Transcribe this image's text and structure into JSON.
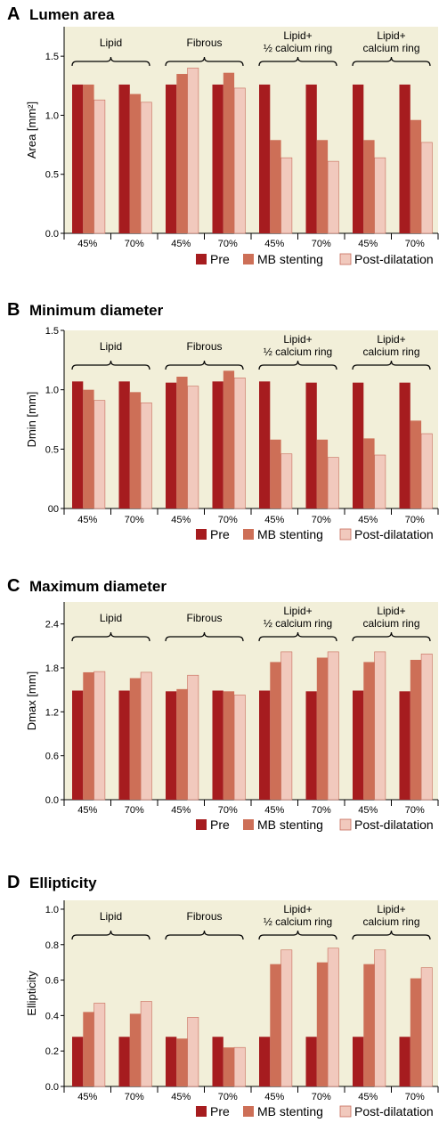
{
  "colors": {
    "pre": "#a61c1f",
    "mb": "#cd6f57",
    "post": "#f1c9bd",
    "post_stroke": "#c76b5a",
    "plot_bg": "#f2efd9"
  },
  "groups": [
    "Lipid",
    "Fibrous",
    "Lipid+ ½ calcium ring",
    "Lipid+ calcium ring"
  ],
  "group_lines": [
    [
      "Lipid"
    ],
    [
      "Fibrous"
    ],
    [
      "Lipid+",
      "½ calcium ring"
    ],
    [
      "Lipid+",
      "calcium ring"
    ]
  ],
  "categories": [
    "45%",
    "70%",
    "45%",
    "70%",
    "45%",
    "70%",
    "45%",
    "70%"
  ],
  "legend": [
    "Pre",
    "MB stenting",
    "Post-dilatation"
  ],
  "chart_data": [
    {
      "type": "bar",
      "letter": "A",
      "title": "Lumen area",
      "ylabel": "Area [mm²]",
      "ylim": [
        0,
        1.75
      ],
      "yticks": [
        "0.0",
        "0.5",
        "1.0",
        "1.5"
      ],
      "ytick_values": [
        0,
        0.5,
        1.0,
        1.5
      ],
      "categories": [
        "45%",
        "70%",
        "45%",
        "70%",
        "45%",
        "70%",
        "45%",
        "70%"
      ],
      "series": [
        {
          "name": "Pre",
          "values": [
            1.26,
            1.26,
            1.26,
            1.26,
            1.26,
            1.26,
            1.26,
            1.26
          ]
        },
        {
          "name": "MB stenting",
          "values": [
            1.26,
            1.18,
            1.35,
            1.36,
            0.79,
            0.79,
            0.79,
            0.96
          ]
        },
        {
          "name": "Post-dilatation",
          "values": [
            1.13,
            1.11,
            1.4,
            1.23,
            0.64,
            0.61,
            0.64,
            0.77
          ]
        }
      ]
    },
    {
      "type": "bar",
      "letter": "B",
      "title": "Minimum diameter",
      "ylabel": "Dmin [mm]",
      "ylim": [
        0,
        1.5
      ],
      "yticks": [
        "00",
        "0.5",
        "1.0",
        "1.5"
      ],
      "ytick_values": [
        0,
        0.5,
        1.0,
        1.5
      ],
      "categories": [
        "45%",
        "70%",
        "45%",
        "70%",
        "45%",
        "70%",
        "45%",
        "70%"
      ],
      "series": [
        {
          "name": "Pre",
          "values": [
            1.07,
            1.07,
            1.06,
            1.07,
            1.07,
            1.06,
            1.06,
            1.06
          ]
        },
        {
          "name": "MB stenting",
          "values": [
            1.0,
            0.98,
            1.11,
            1.16,
            0.58,
            0.58,
            0.59,
            0.74
          ]
        },
        {
          "name": "Post-dilatation",
          "values": [
            0.91,
            0.89,
            1.03,
            1.1,
            0.46,
            0.43,
            0.45,
            0.63
          ]
        }
      ]
    },
    {
      "type": "bar",
      "letter": "C",
      "title": "Maximum diameter",
      "ylabel": "Dmax [mm]",
      "ylim": [
        0,
        2.7
      ],
      "yticks": [
        "0.0",
        "0.6",
        "1.2",
        "1.8",
        "2.4"
      ],
      "ytick_values": [
        0,
        0.6,
        1.2,
        1.8,
        2.4
      ],
      "categories": [
        "45%",
        "70%",
        "45%",
        "70%",
        "45%",
        "70%",
        "45%",
        "70%"
      ],
      "series": [
        {
          "name": "Pre",
          "values": [
            1.49,
            1.49,
            1.48,
            1.49,
            1.49,
            1.48,
            1.49,
            1.48
          ]
        },
        {
          "name": "MB stenting",
          "values": [
            1.74,
            1.66,
            1.51,
            1.48,
            1.88,
            1.94,
            1.88,
            1.91
          ]
        },
        {
          "name": "Post-dilatation",
          "values": [
            1.75,
            1.74,
            1.7,
            1.43,
            2.02,
            2.02,
            2.02,
            1.99
          ]
        }
      ]
    },
    {
      "type": "bar",
      "letter": "D",
      "title": "Ellipticity",
      "ylabel": "Ellipticity",
      "ylim": [
        0,
        1.05
      ],
      "yticks": [
        "0.0",
        "0.2",
        "0.4",
        "0.6",
        "0.8",
        "1.0"
      ],
      "ytick_values": [
        0,
        0.2,
        0.4,
        0.6,
        0.8,
        1.0
      ],
      "categories": [
        "45%",
        "70%",
        "45%",
        "70%",
        "45%",
        "70%",
        "45%",
        "70%"
      ],
      "series": [
        {
          "name": "Pre",
          "values": [
            0.28,
            0.28,
            0.28,
            0.28,
            0.28,
            0.28,
            0.28,
            0.28
          ]
        },
        {
          "name": "MB stenting",
          "values": [
            0.42,
            0.41,
            0.27,
            0.22,
            0.69,
            0.7,
            0.69,
            0.61
          ]
        },
        {
          "name": "Post-dilatation",
          "values": [
            0.47,
            0.48,
            0.39,
            0.22,
            0.77,
            0.78,
            0.77,
            0.67
          ]
        }
      ]
    }
  ]
}
